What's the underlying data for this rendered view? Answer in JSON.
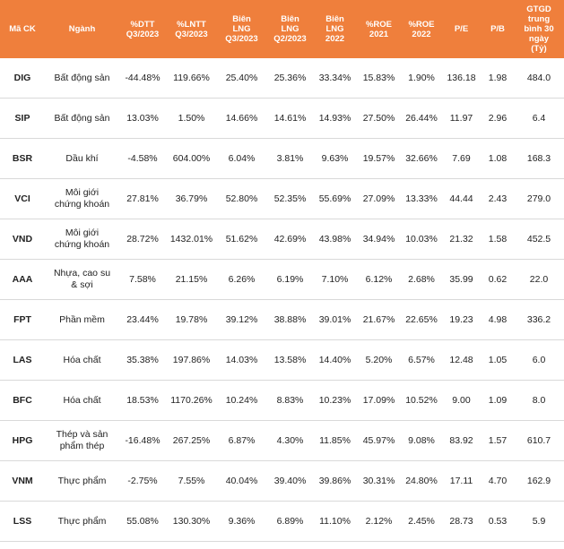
{
  "table": {
    "header": [
      "Mã CK",
      "Ngành",
      "%DTT\nQ3/2023",
      "%LNTT\nQ3/2023",
      "Biên\nLNG\nQ3/2023",
      "Biên\nLNG\nQ2/2023",
      "Biên\nLNG\n2022",
      "%ROE\n2021",
      "%ROE\n2022",
      "P/E",
      "P/B",
      "GTGD\ntrung\nbình 30\nngày\n(Tỷ)"
    ],
    "rows": [
      [
        "DIG",
        "Bất động sản",
        "-44.48%",
        "119.66%",
        "25.40%",
        "25.36%",
        "33.34%",
        "15.83%",
        "1.90%",
        "136.18",
        "1.98",
        "484.0"
      ],
      [
        "SIP",
        "Bất động sản",
        "13.03%",
        "1.50%",
        "14.66%",
        "14.61%",
        "14.93%",
        "27.50%",
        "26.44%",
        "11.97",
        "2.96",
        "6.4"
      ],
      [
        "BSR",
        "Dầu khí",
        "-4.58%",
        "604.00%",
        "6.04%",
        "3.81%",
        "9.63%",
        "19.57%",
        "32.66%",
        "7.69",
        "1.08",
        "168.3"
      ],
      [
        "VCI",
        "Môi giới chứng khoán",
        "27.81%",
        "36.79%",
        "52.80%",
        "52.35%",
        "55.69%",
        "27.09%",
        "13.33%",
        "44.44",
        "2.43",
        "279.0"
      ],
      [
        "VND",
        "Môi giới chứng khoán",
        "28.72%",
        "1432.01%",
        "51.62%",
        "42.69%",
        "43.98%",
        "34.94%",
        "10.03%",
        "21.32",
        "1.58",
        "452.5"
      ],
      [
        "AAA",
        "Nhựa, cao su & sợi",
        "7.58%",
        "21.15%",
        "6.26%",
        "6.19%",
        "7.10%",
        "6.12%",
        "2.68%",
        "35.99",
        "0.62",
        "22.0"
      ],
      [
        "FPT",
        "Phần mềm",
        "23.44%",
        "19.78%",
        "39.12%",
        "38.88%",
        "39.01%",
        "21.67%",
        "22.65%",
        "19.23",
        "4.98",
        "336.2"
      ],
      [
        "LAS",
        "Hóa chất",
        "35.38%",
        "197.86%",
        "14.03%",
        "13.58%",
        "14.40%",
        "5.20%",
        "6.57%",
        "12.48",
        "1.05",
        "6.0"
      ],
      [
        "BFC",
        "Hóa chất",
        "18.53%",
        "1170.26%",
        "10.24%",
        "8.83%",
        "10.23%",
        "17.09%",
        "10.52%",
        "9.00",
        "1.09",
        "8.0"
      ],
      [
        "HPG",
        "Thép và sản phẩm thép",
        "-16.48%",
        "267.25%",
        "6.87%",
        "4.30%",
        "11.85%",
        "45.97%",
        "9.08%",
        "83.92",
        "1.57",
        "610.7"
      ],
      [
        "VNM",
        "Thực phẩm",
        "-2.75%",
        "7.55%",
        "40.04%",
        "39.40%",
        "39.86%",
        "30.31%",
        "24.80%",
        "17.11",
        "4.70",
        "162.9"
      ],
      [
        "LSS",
        "Thực phẩm",
        "55.08%",
        "130.30%",
        "9.36%",
        "6.89%",
        "11.10%",
        "2.12%",
        "2.45%",
        "28.73",
        "0.53",
        "5.9"
      ]
    ]
  }
}
